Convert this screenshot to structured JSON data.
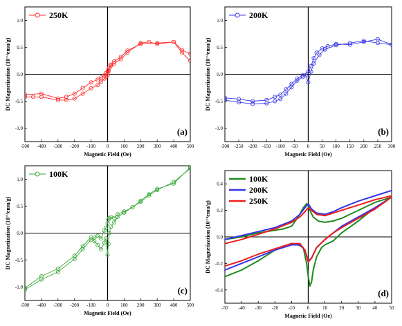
{
  "chart_data": [
    {
      "type": "line",
      "panel_label": "(a)",
      "xlabel": "Magnetic Field (Oe)",
      "ylabel": "DC Magnetization (10⁻⁴emu/g)",
      "xlim": [
        -500,
        500
      ],
      "ylim": [
        -1.25,
        1.25
      ],
      "xticks": [
        -500,
        -400,
        -300,
        -200,
        -100,
        0,
        100,
        200,
        300,
        400,
        500
      ],
      "yticks": [
        -1.0,
        -0.5,
        0.0,
        0.5,
        1.0
      ],
      "grid": false,
      "legend_position": "top-left",
      "series": [
        {
          "name": "250K",
          "color": "#ff2a2a",
          "marker": "circle",
          "branches": [
            {
              "x": [
                -500,
                -400,
                -300,
                -250,
                -200,
                -150,
                -100,
                -60,
                -40,
                -20,
                -10,
                0,
                5,
                10,
                20,
                40,
                80,
                120,
                200,
                250,
                300,
                400,
                450,
                500
              ],
              "y": [
                -0.38,
                -0.36,
                -0.45,
                -0.42,
                -0.36,
                -0.26,
                -0.15,
                -0.1,
                -0.06,
                -0.02,
                0.02,
                0.05,
                0.08,
                0.12,
                0.16,
                0.2,
                0.28,
                0.4,
                0.58,
                0.6,
                0.56,
                0.6,
                0.45,
                0.38
              ]
            },
            {
              "x": [
                -500,
                -450,
                -400,
                -300,
                -250,
                -200,
                -150,
                -100,
                -60,
                -40,
                -20,
                -10,
                0,
                5,
                10,
                20,
                40,
                80,
                120,
                200,
                300,
                400,
                450,
                500
              ],
              "y": [
                -0.42,
                -0.42,
                -0.42,
                -0.48,
                -0.48,
                -0.45,
                -0.36,
                -0.26,
                -0.2,
                -0.14,
                -0.08,
                -0.05,
                -0.02,
                0.05,
                0.12,
                0.18,
                0.24,
                0.32,
                0.44,
                0.56,
                0.58,
                0.6,
                0.4,
                0.25
              ]
            }
          ]
        }
      ]
    },
    {
      "type": "line",
      "panel_label": "(b)",
      "xlabel": "Magnetic Field (Oe)",
      "ylabel": "DC Magnetization (10⁻⁴emu/g)",
      "xlim": [
        -300,
        300
      ],
      "ylim": [
        -1.25,
        1.25
      ],
      "xticks": [
        -300,
        -250,
        -200,
        -150,
        -100,
        -50,
        0,
        50,
        100,
        150,
        200,
        250,
        300
      ],
      "yticks": [
        -1.0,
        -0.5,
        0.0,
        0.5,
        1.0
      ],
      "grid": false,
      "legend_position": "top-left",
      "series": [
        {
          "name": "200K",
          "color": "#3535e8",
          "marker": "circle",
          "branches": [
            {
              "x": [
                -300,
                -250,
                -200,
                -150,
                -120,
                -100,
                -80,
                -60,
                -40,
                -20,
                0,
                10,
                20,
                30,
                50,
                70,
                100,
                150,
                200,
                250,
                300
              ],
              "y": [
                -0.44,
                -0.46,
                -0.5,
                -0.48,
                -0.42,
                -0.38,
                -0.28,
                -0.18,
                -0.08,
                -0.02,
                0.05,
                0.15,
                0.3,
                0.4,
                0.48,
                0.52,
                0.56,
                0.55,
                0.6,
                0.65,
                0.55
              ]
            },
            {
              "x": [
                -300,
                -250,
                -200,
                -150,
                -120,
                -100,
                -80,
                -60,
                -40,
                -20,
                -10,
                0,
                10,
                20,
                40,
                60,
                100,
                150,
                200,
                250,
                300
              ],
              "y": [
                -0.48,
                -0.52,
                -0.55,
                -0.54,
                -0.5,
                -0.46,
                -0.36,
                -0.24,
                -0.12,
                -0.05,
                -0.02,
                -0.15,
                0.05,
                0.2,
                0.36,
                0.46,
                0.54,
                0.58,
                0.62,
                0.58,
                0.55
              ]
            }
          ]
        }
      ]
    },
    {
      "type": "line",
      "panel_label": "(c)",
      "xlabel": "Magnetic Field (Oe)",
      "ylabel": "DC Magnetization (10⁻⁴emu/g)",
      "xlim": [
        -500,
        500
      ],
      "ylim": [
        -1.25,
        1.25
      ],
      "xticks": [
        -500,
        -400,
        -300,
        -200,
        -100,
        0,
        100,
        200,
        300,
        400,
        500
      ],
      "yticks": [
        -1.0,
        -0.5,
        0.0,
        0.5,
        1.0
      ],
      "grid": false,
      "legend_position": "top-left",
      "series": [
        {
          "name": "100K",
          "color": "#3aa83a",
          "marker": "circle",
          "branches": [
            {
              "x": [
                -500,
                -400,
                -300,
                -200,
                -150,
                -100,
                -80,
                -60,
                -40,
                -20,
                -10,
                0,
                5,
                10,
                20,
                40,
                60,
                100,
                150,
                200,
                250,
                300,
                400,
                500
              ],
              "y": [
                -1.05,
                -0.86,
                -0.72,
                -0.48,
                -0.3,
                -0.12,
                -0.08,
                -0.05,
                -0.1,
                0.05,
                0.1,
                0.18,
                0.25,
                0.28,
                0.3,
                0.28,
                0.35,
                0.4,
                0.48,
                0.58,
                0.7,
                0.8,
                0.95,
                1.2
              ]
            },
            {
              "x": [
                -500,
                -400,
                -300,
                -200,
                -150,
                -100,
                -80,
                -60,
                -40,
                -20,
                -10,
                0,
                5,
                10,
                20,
                40,
                60,
                100,
                150,
                200,
                250,
                300,
                400,
                500
              ],
              "y": [
                -1.02,
                -0.8,
                -0.66,
                -0.42,
                -0.24,
                -0.08,
                -0.15,
                -0.22,
                -0.3,
                -0.18,
                -0.1,
                -0.4,
                -0.2,
                0.0,
                0.12,
                0.2,
                0.3,
                0.38,
                0.48,
                0.6,
                0.72,
                0.82,
                0.92,
                1.22
              ]
            }
          ]
        }
      ]
    },
    {
      "type": "line",
      "panel_label": "(d)",
      "xlabel": "Magnetic Field (Oe)",
      "ylabel": "DC Magnetization (10⁻⁴emu/g)",
      "xlim": [
        -50,
        50
      ],
      "ylim": [
        -0.5,
        0.5
      ],
      "xticks": [
        -50,
        -40,
        -30,
        -20,
        -10,
        0,
        10,
        20,
        30,
        40,
        50
      ],
      "yticks": [
        -0.4,
        -0.2,
        0.0,
        0.2,
        0.4
      ],
      "grid": false,
      "legend_position": "top-left",
      "series": [
        {
          "name": "100K",
          "color": "#1e8a1e",
          "branches": [
            {
              "x": [
                -50,
                -40,
                -30,
                -20,
                -15,
                -10,
                -6,
                -3,
                -1,
                0,
                1,
                3,
                6,
                10,
                15,
                20,
                30,
                40,
                50
              ],
              "y": [
                -0.02,
                0.0,
                0.03,
                0.05,
                0.06,
                0.08,
                0.15,
                0.22,
                0.25,
                0.24,
                0.2,
                0.15,
                0.12,
                0.11,
                0.12,
                0.14,
                0.2,
                0.26,
                0.3
              ]
            },
            {
              "x": [
                -50,
                -40,
                -30,
                -20,
                -15,
                -10,
                -6,
                -3,
                -1,
                0,
                1,
                2,
                3,
                5,
                8,
                10,
                15,
                20,
                30,
                40,
                50
              ],
              "y": [
                -0.3,
                -0.25,
                -0.18,
                -0.1,
                -0.07,
                -0.05,
                -0.06,
                -0.08,
                -0.2,
                -0.3,
                -0.37,
                -0.34,
                -0.25,
                -0.15,
                -0.08,
                -0.06,
                -0.03,
                0.03,
                0.12,
                0.22,
                0.3
              ]
            }
          ]
        },
        {
          "name": "200K",
          "color": "#3535e8",
          "branches": [
            {
              "x": [
                -50,
                -40,
                -30,
                -20,
                -10,
                -5,
                -2,
                0,
                2,
                5,
                10,
                15,
                20,
                30,
                40,
                50
              ],
              "y": [
                -0.02,
                0.01,
                0.04,
                0.07,
                0.12,
                0.17,
                0.22,
                0.25,
                0.21,
                0.18,
                0.17,
                0.19,
                0.22,
                0.27,
                0.31,
                0.35
              ]
            },
            {
              "x": [
                -50,
                -40,
                -30,
                -20,
                -10,
                -5,
                -2,
                0,
                2,
                5,
                10,
                15,
                20,
                30,
                40,
                50
              ],
              "y": [
                -0.25,
                -0.2,
                -0.15,
                -0.1,
                -0.06,
                -0.06,
                -0.1,
                -0.18,
                -0.16,
                -0.08,
                -0.02,
                0.03,
                0.08,
                0.15,
                0.22,
                0.3
              ]
            }
          ]
        },
        {
          "name": "250K",
          "color": "#ee1c1c",
          "branches": [
            {
              "x": [
                -50,
                -40,
                -30,
                -20,
                -10,
                -5,
                -2,
                0,
                2,
                5,
                10,
                15,
                20,
                30,
                40,
                50
              ],
              "y": [
                -0.05,
                -0.02,
                0.02,
                0.06,
                0.11,
                0.15,
                0.19,
                0.22,
                0.2,
                0.17,
                0.16,
                0.18,
                0.2,
                0.24,
                0.28,
                0.31
              ]
            },
            {
              "x": [
                -50,
                -40,
                -30,
                -20,
                -10,
                -5,
                -2,
                0,
                2,
                5,
                10,
                15,
                20,
                30,
                40,
                50
              ],
              "y": [
                -0.22,
                -0.18,
                -0.13,
                -0.09,
                -0.05,
                -0.05,
                -0.1,
                -0.19,
                -0.16,
                -0.08,
                -0.02,
                0.03,
                0.07,
                0.14,
                0.21,
                0.3
              ]
            }
          ]
        }
      ]
    }
  ]
}
